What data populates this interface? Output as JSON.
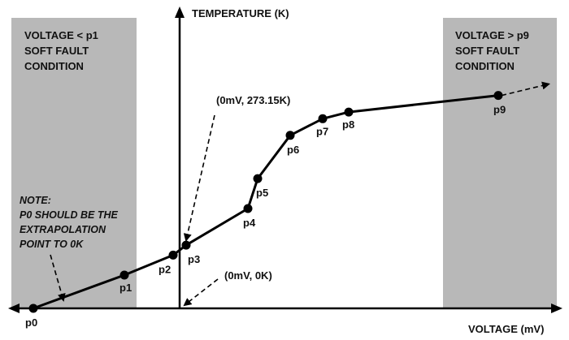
{
  "chart_data": {
    "type": "line",
    "title": "",
    "xlabel": "VOLTAGE (mV)",
    "ylabel": "TEMPERATURE (K)",
    "grid": false,
    "axis_ticks": false,
    "points": [
      {
        "label": "p0",
        "x": -2.25,
        "y": 0
      },
      {
        "label": "p1",
        "x": -0.85,
        "y": 0.5
      },
      {
        "label": "p2",
        "x": -0.1,
        "y": 0.8
      },
      {
        "label": "p3",
        "x": 0.1,
        "y": 0.95
      },
      {
        "label": "p4",
        "x": 1.05,
        "y": 1.5
      },
      {
        "label": "p5",
        "x": 1.2,
        "y": 1.95
      },
      {
        "label": "p6",
        "x": 1.7,
        "y": 2.6
      },
      {
        "label": "p7",
        "x": 2.2,
        "y": 2.85
      },
      {
        "label": "p8",
        "x": 2.6,
        "y": 2.95
      },
      {
        "label": "p9",
        "x": 4.9,
        "y": 3.2
      }
    ],
    "regions": [
      {
        "side": "left",
        "lines": [
          "VOLTAGE < p1",
          "SOFT FAULT",
          "CONDITION"
        ]
      },
      {
        "side": "right",
        "lines": [
          "VOLTAGE > p9",
          "SOFT FAULT",
          "CONDITION"
        ]
      }
    ],
    "annotations": {
      "p3_point": "(0mV, 273.15K)",
      "origin_point": "(0mV, 0K)",
      "note_lines": [
        "NOTE:",
        "P0 SHOULD BE THE",
        "EXTRAPOLATION",
        "POINT TO 0K"
      ]
    },
    "colors": {
      "region_fill": "#b8b8b8",
      "line": "#000000",
      "background": "#ffffff"
    }
  }
}
